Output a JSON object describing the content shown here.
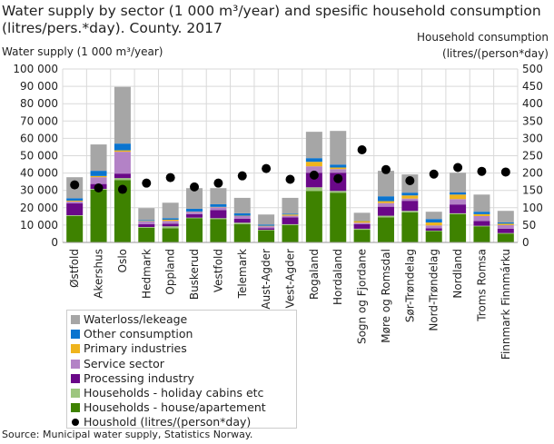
{
  "chart_data": {
    "type": "bar",
    "stacked": true,
    "title": "Water supply by sector (1 000 m³/year) and spesific household consumption (litres/pers.*day). County. 2017",
    "ylabel": "Water supply (1 000  m³/year)",
    "y2label": "Household consumption (litres/(person*day)",
    "ylim": [
      0,
      100000
    ],
    "y2lim": [
      0,
      500
    ],
    "yticks": [
      "0",
      "10 000",
      "20 000",
      "30 000",
      "40 000",
      "50 000",
      "60 000",
      "70 000",
      "80 000",
      "90 000",
      "100 000"
    ],
    "y2ticks": [
      "0",
      "50",
      "100",
      "150",
      "200",
      "250",
      "300",
      "350",
      "400",
      "450",
      "500"
    ],
    "grid": true,
    "legend_placement": "bottom-left",
    "categories": [
      "Østfold",
      "Akershus",
      "Oslo",
      "Hedmark",
      "Oppland",
      "Buskerud",
      "Vestfold",
      "Telemark",
      "Aust-Agder",
      "Vest-Agder",
      "Rogaland",
      "Hordaland",
      "Sogn og Fjordane",
      "Møre og Romsdal",
      "Sør-Trøndelag",
      "Nord-Trøndelag",
      "Nordland",
      "Troms Romsa",
      "Finnmark Finnmárku"
    ],
    "series": [
      {
        "name": "Households - house/apartement",
        "color": "#3e8200",
        "values": [
          15200,
          30400,
          36000,
          8400,
          8200,
          14000,
          13500,
          10500,
          7000,
          10000,
          29700,
          28700,
          7300,
          14500,
          17300,
          6500,
          16300,
          9300,
          5100
        ]
      },
      {
        "name": "Households - holiday cabins etc",
        "color": "#9dc67f",
        "values": [
          500,
          500,
          1100,
          500,
          1100,
          300,
          500,
          900,
          300,
          500,
          2100,
          1000,
          600,
          900,
          900,
          300,
          500,
          300,
          300
        ]
      },
      {
        "name": "Processing industry",
        "color": "#6a0888",
        "values": [
          6800,
          2800,
          2600,
          1600,
          1500,
          2000,
          4700,
          2200,
          900,
          4000,
          8400,
          10500,
          2600,
          5200,
          5800,
          1400,
          5100,
          2800,
          2500
        ]
      },
      {
        "name": "Service sector",
        "color": "#b382c6",
        "values": [
          1100,
          3900,
          12600,
          1600,
          1600,
          1400,
          1600,
          1600,
          1100,
          900,
          3700,
          2100,
          900,
          2100,
          1300,
          1600,
          3100,
          2800,
          2100
        ]
      },
      {
        "name": "Primary industries",
        "color": "#efb41d",
        "values": [
          500,
          700,
          800,
          300,
          700,
          100,
          200,
          200,
          300,
          700,
          2600,
          900,
          1000,
          1100,
          1800,
          1700,
          2600,
          1100,
          800
        ]
      },
      {
        "name": "Other consumption",
        "color": "#0a74cf",
        "values": [
          1400,
          3000,
          3900,
          500,
          900,
          1600,
          1500,
          1400,
          700,
          500,
          2100,
          1700,
          200,
          2800,
          1600,
          2000,
          1200,
          1400,
          700
        ]
      },
      {
        "name": "Waterloss/lekeage",
        "color": "#a6a6a6",
        "values": [
          12100,
          15200,
          32700,
          6900,
          8900,
          11900,
          9300,
          8900,
          5800,
          9100,
          15200,
          19400,
          4500,
          14700,
          10500,
          4200,
          11400,
          9900,
          6700
        ]
      }
    ],
    "line_series": {
      "name": "Houshold (litres/(person*day)",
      "axis": "right",
      "color": "#000000",
      "values": [
        166,
        157,
        153,
        171,
        187,
        160,
        171,
        192,
        213,
        182,
        194,
        184,
        267,
        210,
        178,
        197,
        216,
        205,
        203
      ]
    }
  },
  "source": "Source: Municipal water supply, Statistics Norway."
}
